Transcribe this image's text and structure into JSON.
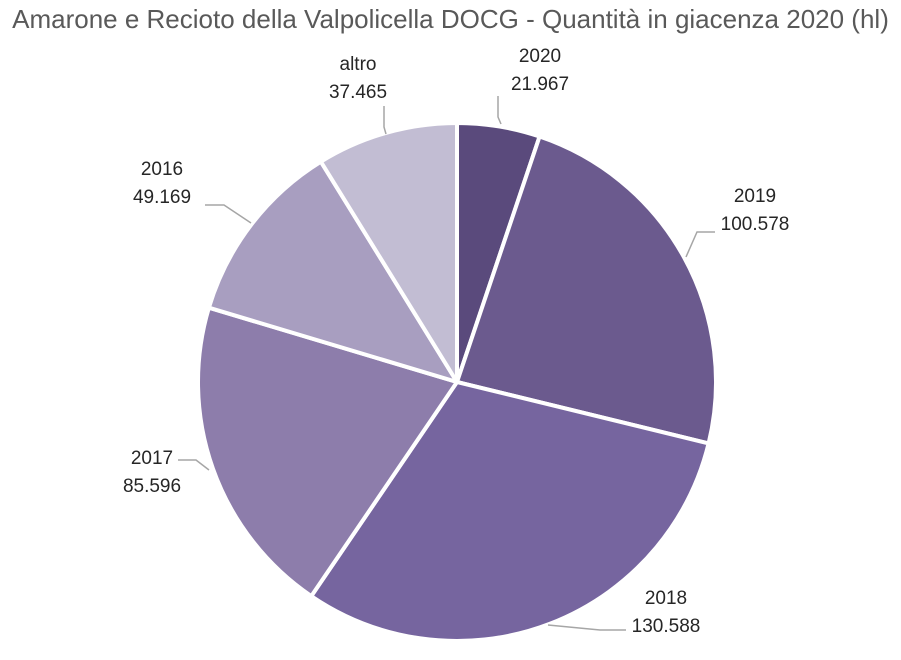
{
  "chart_data": {
    "type": "pie",
    "title": "Amarone e Recioto della Valpolicella DOCG - Quantità in giacenza 2020 (hl)",
    "slices": [
      {
        "label": "2020",
        "value": 21967,
        "value_label": "21.967",
        "color": "#5a4a7c"
      },
      {
        "label": "2019",
        "value": 100578,
        "value_label": "100.578",
        "color": "#6b5a8e"
      },
      {
        "label": "2018",
        "value": 130588,
        "value_label": "130.588",
        "color": "#76659f"
      },
      {
        "label": "2017",
        "value": 85596,
        "value_label": "85.596",
        "color": "#8d7dab"
      },
      {
        "label": "2016",
        "value": 49169,
        "value_label": "49.169",
        "color": "#a89ec0"
      },
      {
        "label": "altro",
        "value": 37465,
        "value_label": "37.465",
        "color": "#c2bdd3"
      }
    ],
    "start_angle_deg": 0,
    "direction": "clockwise",
    "legend": "none",
    "data_labels": "outside-with-leader-lines"
  }
}
